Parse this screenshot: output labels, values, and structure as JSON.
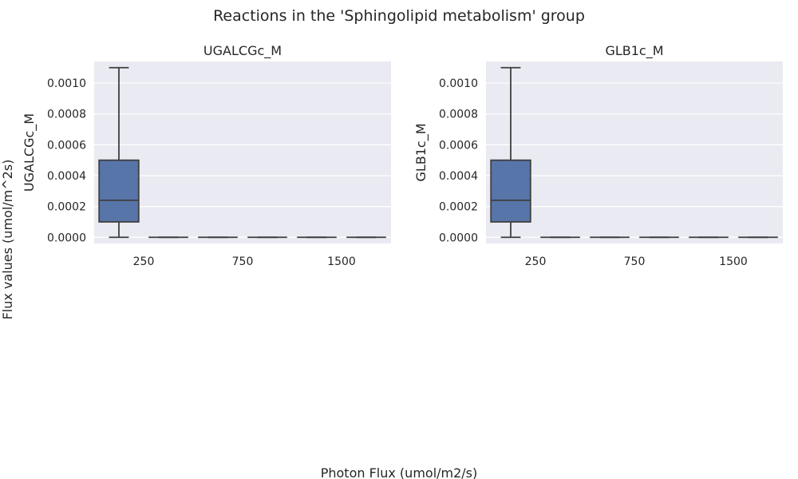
{
  "figure": {
    "title": "Reactions in the 'Sphingolipid metabolism' group",
    "xlabel": "Photon Flux (umol/m2/s)",
    "ylabel": "Flux values (umol/m^2s)"
  },
  "colors": {
    "background": "#eaeaf2",
    "grid": "#ffffff",
    "box": "#5875a9",
    "line": "#3f3f3f",
    "text": "#262626"
  },
  "chart_data": [
    {
      "type": "box",
      "title": "UGALCGc_M",
      "ylabel": "UGALCGc_M",
      "categories": [
        "250",
        "750",
        "1500"
      ],
      "ylim": [
        -4e-05,
        0.00114
      ],
      "yticks": [
        0,
        0.0002,
        0.0004,
        0.0006,
        0.0008,
        0.001
      ],
      "ytick_labels": [
        "0.0000",
        "0.0002",
        "0.0004",
        "0.0006",
        "0.0008",
        "0.0010"
      ],
      "grid": true,
      "boxes": [
        {
          "category": "250",
          "min": 0.0,
          "q1": 0.0001,
          "median": 0.00024,
          "q3": 0.0005,
          "max": 0.0011
        },
        {
          "category": "250",
          "min": 0.0,
          "q1": 0.0,
          "median": 0.0,
          "q3": 0.0,
          "max": 0.0
        },
        {
          "category": "750",
          "min": 0.0,
          "q1": 0.0,
          "median": 0.0,
          "q3": 0.0,
          "max": 0.0
        },
        {
          "category": "750",
          "min": 0.0,
          "q1": 0.0,
          "median": 0.0,
          "q3": 0.0,
          "max": 0.0
        },
        {
          "category": "1500",
          "min": 0.0,
          "q1": 0.0,
          "median": 0.0,
          "q3": 0.0,
          "max": 0.0
        },
        {
          "category": "1500",
          "min": 0.0,
          "q1": 0.0,
          "median": 0.0,
          "q3": 0.0,
          "max": 0.0
        }
      ]
    },
    {
      "type": "box",
      "title": "GLB1c_M",
      "ylabel": "GLB1c_M",
      "categories": [
        "250",
        "750",
        "1500"
      ],
      "ylim": [
        -4e-05,
        0.00114
      ],
      "yticks": [
        0,
        0.0002,
        0.0004,
        0.0006,
        0.0008,
        0.001
      ],
      "ytick_labels": [
        "0.0000",
        "0.0002",
        "0.0004",
        "0.0006",
        "0.0008",
        "0.0010"
      ],
      "grid": true,
      "boxes": [
        {
          "category": "250",
          "min": 0.0,
          "q1": 0.0001,
          "median": 0.00024,
          "q3": 0.0005,
          "max": 0.0011
        },
        {
          "category": "250",
          "min": 0.0,
          "q1": 0.0,
          "median": 0.0,
          "q3": 0.0,
          "max": 0.0
        },
        {
          "category": "750",
          "min": 0.0,
          "q1": 0.0,
          "median": 0.0,
          "q3": 0.0,
          "max": 0.0
        },
        {
          "category": "750",
          "min": 0.0,
          "q1": 0.0,
          "median": 0.0,
          "q3": 0.0,
          "max": 0.0
        },
        {
          "category": "1500",
          "min": 0.0,
          "q1": 0.0,
          "median": 0.0,
          "q3": 0.0,
          "max": 0.0
        },
        {
          "category": "1500",
          "min": 0.0,
          "q1": 0.0,
          "median": 0.0,
          "q3": 0.0,
          "max": 0.0
        }
      ]
    }
  ]
}
